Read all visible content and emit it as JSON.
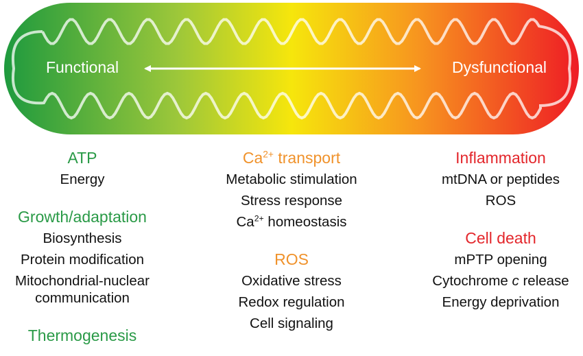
{
  "banner": {
    "left_label": "Functional",
    "right_label": "Dysfunctional"
  },
  "columns": [
    {
      "color": "#2a9a47",
      "groups": [
        {
          "heading": "ATP",
          "items": [
            "Energy"
          ]
        },
        {
          "heading": "Growth/adaptation",
          "items": [
            "Biosynthesis",
            "Protein modification",
            "Mitochondrial-nuclear communication"
          ]
        },
        {
          "heading": "Thermogenesis",
          "items": []
        }
      ]
    },
    {
      "color": "#f0922b",
      "groups": [
        {
          "heading": {
            "parts": [
              "Ca",
              "2+",
              " transport"
            ],
            "style": "sup"
          },
          "items": [
            "Metabolic stimulation",
            "Stress response",
            {
              "parts": [
                "Ca",
                "2+",
                " homeostasis"
              ],
              "style": "sup"
            }
          ]
        },
        {
          "heading": "ROS",
          "items": [
            "Oxidative stress",
            "Redox regulation",
            "Cell signaling"
          ]
        }
      ]
    },
    {
      "color": "#e3262b",
      "groups": [
        {
          "heading": "Inflammation",
          "items": [
            "mtDNA or peptides",
            "ROS"
          ]
        },
        {
          "heading": "Cell death",
          "items": [
            "mPTP opening",
            {
              "parts": [
                "Cytochrome ",
                "c",
                " release"
              ],
              "style": "italic"
            },
            "Energy deprivation"
          ]
        }
      ]
    }
  ]
}
